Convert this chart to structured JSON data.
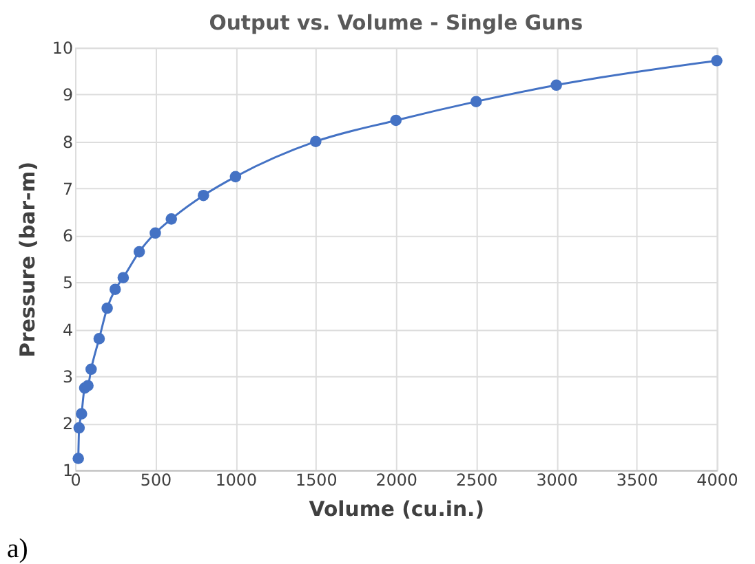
{
  "chart_data": {
    "type": "line",
    "title": "Output vs. Volume - Single Guns",
    "xlabel": "Volume (cu.in.)",
    "ylabel": "Pressure (bar-m)",
    "x": [
      20,
      25,
      40,
      60,
      80,
      100,
      150,
      200,
      250,
      300,
      400,
      500,
      600,
      800,
      1000,
      1500,
      2000,
      2500,
      3000,
      4000
    ],
    "series": [
      {
        "color": "#4472c4",
        "values": [
          1.25,
          1.9,
          2.2,
          2.75,
          2.8,
          3.15,
          3.8,
          4.45,
          4.85,
          5.1,
          5.65,
          6.05,
          6.35,
          6.85,
          7.25,
          8.0,
          8.45,
          8.85,
          9.2,
          9.72
        ]
      }
    ],
    "xlim": [
      0,
      4000
    ],
    "xticks": [
      0,
      500,
      1000,
      1500,
      2000,
      2500,
      3000,
      3500,
      4000
    ],
    "ylim": [
      1,
      10
    ],
    "yticks": [
      1,
      2,
      3,
      4,
      5,
      6,
      7,
      8,
      9,
      10
    ],
    "grid": true,
    "marker": "circle",
    "line_style": "solid",
    "annotations": [
      "a)"
    ]
  }
}
